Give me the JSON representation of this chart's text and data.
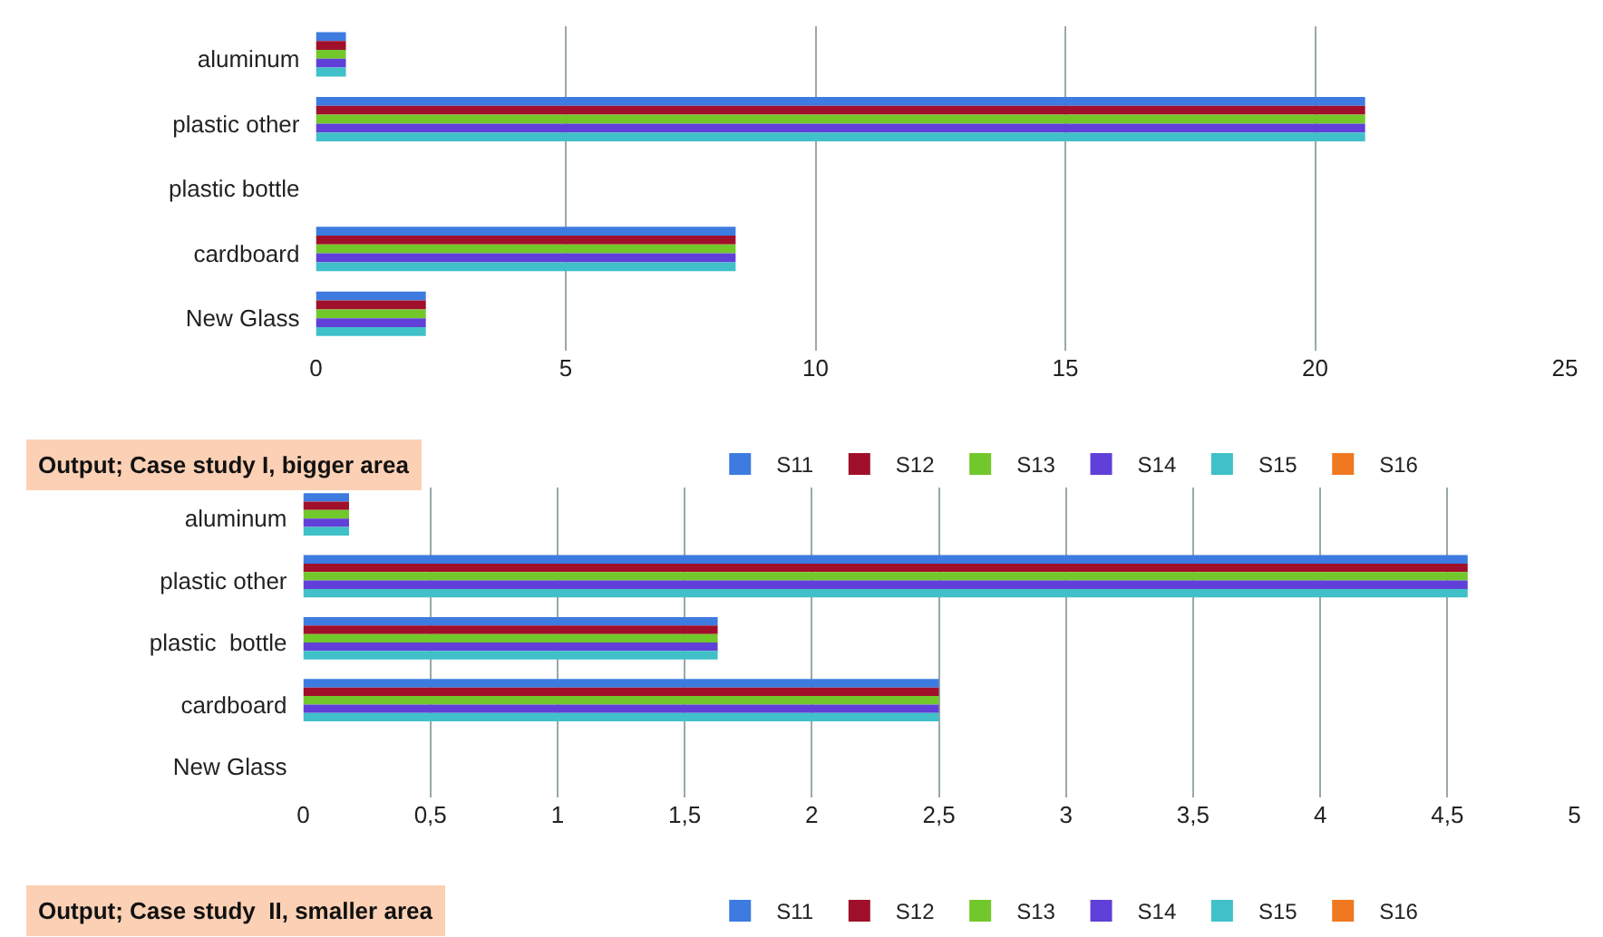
{
  "chart_data": [
    {
      "type": "bar",
      "orientation": "horizontal",
      "title": "Output; Case study I, bigger area",
      "categories": [
        "aluminum",
        "plastic other",
        "plastic bottle",
        "cardboard",
        "New Glass"
      ],
      "series": [
        {
          "name": "S11",
          "color": "#3d7be0",
          "values": [
            0.6,
            21.0,
            0,
            8.4,
            2.2
          ]
        },
        {
          "name": "S12",
          "color": "#a0102a",
          "values": [
            0.6,
            21.0,
            0,
            8.4,
            2.2
          ]
        },
        {
          "name": "S13",
          "color": "#72c82a",
          "values": [
            0.6,
            21.0,
            0,
            8.4,
            2.2
          ]
        },
        {
          "name": "S14",
          "color": "#6040d8",
          "values": [
            0.6,
            21.0,
            0,
            8.4,
            2.2
          ]
        },
        {
          "name": "S15",
          "color": "#40c0c8",
          "values": [
            0.6,
            21.0,
            0,
            8.4,
            2.2
          ]
        },
        {
          "name": "S16",
          "color": "#f07820",
          "values": [
            null,
            null,
            null,
            null,
            null
          ]
        }
      ],
      "xlim": [
        0,
        25
      ],
      "xticks": [
        0,
        5,
        10,
        15,
        20,
        25
      ],
      "grid": "x",
      "legend": "bottom"
    },
    {
      "type": "bar",
      "orientation": "horizontal",
      "title": "Output; Case study  II, smaller area",
      "categories": [
        "aluminum",
        "plastic other",
        "plastic  bottle",
        "cardboard",
        "New Glass"
      ],
      "series": [
        {
          "name": "S11",
          "color": "#3d7be0",
          "values": [
            0.18,
            4.58,
            1.63,
            2.5,
            0
          ]
        },
        {
          "name": "S12",
          "color": "#a0102a",
          "values": [
            0.18,
            4.58,
            1.63,
            2.5,
            0
          ]
        },
        {
          "name": "S13",
          "color": "#72c82a",
          "values": [
            0.18,
            4.58,
            1.63,
            2.5,
            0
          ]
        },
        {
          "name": "S14",
          "color": "#6040d8",
          "values": [
            0.18,
            4.58,
            1.63,
            2.5,
            0
          ]
        },
        {
          "name": "S15",
          "color": "#40c0c8",
          "values": [
            0.18,
            4.58,
            1.63,
            2.5,
            0
          ]
        },
        {
          "name": "S16",
          "color": "#f07820",
          "values": [
            null,
            null,
            null,
            null,
            null
          ]
        }
      ],
      "xlim": [
        0,
        5
      ],
      "xticks": [
        0,
        {
          "value": 0.5,
          "label": "0,5"
        },
        1,
        {
          "value": 1.5,
          "label": "1,5"
        },
        2,
        {
          "value": 2.5,
          "label": "2,5"
        },
        3,
        {
          "value": 3.5,
          "label": "3,5"
        },
        4,
        {
          "value": 4.5,
          "label": "4,5"
        },
        5
      ],
      "grid": "x",
      "legend": "bottom"
    }
  ]
}
